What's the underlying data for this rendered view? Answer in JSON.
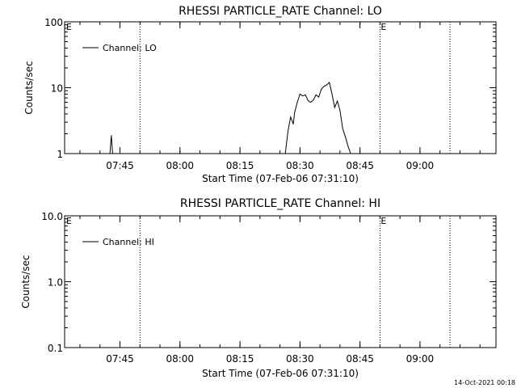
{
  "footer": {
    "timestamp": "14-Oct-2021 00:18"
  },
  "chart_data": [
    {
      "type": "line",
      "title": "RHESSI PARTICLE_RATE Channel: LO",
      "xlabel": "Start Time (07-Feb-06 07:31:10)",
      "ylabel": "Counts/sec",
      "yscale": "log",
      "ylim": [
        1,
        100
      ],
      "yticks": [
        1,
        10,
        100
      ],
      "ytick_labels": [
        "1",
        "10",
        "100"
      ],
      "xlim": [
        "07:31:10",
        "09:19:00"
      ],
      "xticks": [
        "07:45",
        "08:00",
        "08:15",
        "08:30",
        "08:45",
        "09:00"
      ],
      "legend": {
        "position": "top-left",
        "entries": [
          "Channel: LO"
        ]
      },
      "markers": [
        {
          "time": "07:50:00",
          "label": ""
        },
        {
          "time": "08:50:00",
          "label": "E"
        },
        {
          "time": "09:07:30",
          "label": ""
        }
      ],
      "edge_marker_label": "E",
      "series": [
        {
          "x": [
            "07:42:30",
            "07:42:50",
            "07:43:10",
            "07:43:30",
            "07:43:50",
            "08:26:20",
            "08:27:00",
            "08:27:40",
            "08:28:20",
            "08:28:40",
            "08:29:20",
            "08:30:00",
            "08:30:40",
            "08:31:20",
            "08:32:00",
            "08:32:40",
            "08:33:20",
            "08:34:00",
            "08:34:40",
            "08:35:20",
            "08:36:00",
            "08:36:40",
            "08:37:20",
            "08:38:00",
            "08:38:40",
            "08:39:20",
            "08:40:00",
            "08:40:40",
            "08:41:20",
            "08:42:00",
            "08:42:40"
          ],
          "y": [
            1,
            1.9,
            1,
            1,
            1,
            1,
            2.2,
            3.6,
            2.8,
            4.2,
            6.0,
            8.0,
            7.5,
            7.8,
            6.4,
            6.0,
            6.5,
            7.8,
            7.2,
            9.5,
            10.5,
            11.0,
            12.0,
            8.0,
            5.0,
            6.3,
            4.5,
            2.4,
            1.8,
            1.3,
            1
          ]
        }
      ]
    },
    {
      "type": "line",
      "title": "RHESSI PARTICLE_RATE Channel: HI",
      "xlabel": "Start Time (07-Feb-06 07:31:10)",
      "ylabel": "Counts/sec",
      "yscale": "log",
      "ylim": [
        0.1,
        10
      ],
      "yticks": [
        0.1,
        1,
        10
      ],
      "ytick_labels": [
        "0.1",
        "1.0",
        "10.0"
      ],
      "xlim": [
        "07:31:10",
        "09:19:00"
      ],
      "xticks": [
        "07:45",
        "08:00",
        "08:15",
        "08:30",
        "08:45",
        "09:00"
      ],
      "legend": {
        "position": "top-left",
        "entries": [
          "Channel: HI"
        ]
      },
      "markers": [
        {
          "time": "07:50:00",
          "label": ""
        },
        {
          "time": "08:50:00",
          "label": "E"
        },
        {
          "time": "09:07:30",
          "label": ""
        }
      ],
      "edge_marker_label": "E",
      "series": []
    }
  ]
}
